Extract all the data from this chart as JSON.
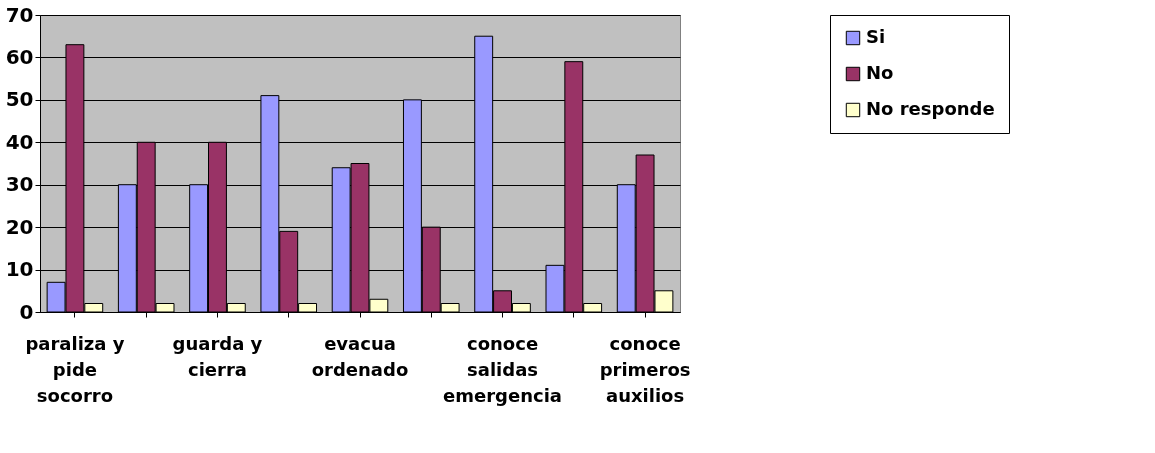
{
  "chart_data": {
    "type": "bar",
    "categories": [
      "paraliza y pide socorro",
      null,
      "guarda y cierra",
      null,
      "evacua ordenado",
      null,
      "conoce salidas emergencia",
      null,
      "conoce primeros auxilios"
    ],
    "series": [
      {
        "name": "Si",
        "color": "#9999ff",
        "values": [
          7,
          30,
          30,
          51,
          34,
          50,
          65,
          11,
          30
        ]
      },
      {
        "name": "No",
        "color": "#993366",
        "values": [
          63,
          40,
          40,
          19,
          35,
          20,
          5,
          59,
          37
        ]
      },
      {
        "name": "No responde",
        "color": "#ffffcc",
        "values": [
          2,
          2,
          2,
          2,
          3,
          2,
          2,
          2,
          5
        ]
      }
    ],
    "ylim": [
      0,
      70
    ],
    "yticks": [
      0,
      10,
      20,
      30,
      40,
      50,
      60,
      70
    ],
    "grid": "y",
    "legend": "right"
  }
}
